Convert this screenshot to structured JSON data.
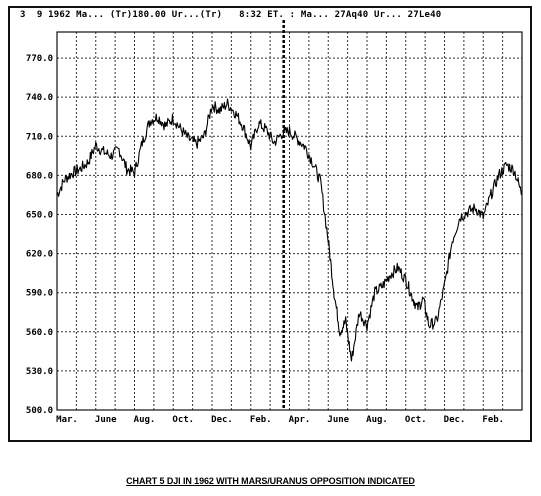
{
  "header": {
    "text": "3  9 1962 Ma... (Tr)180.00 Ur...(Tr)   8:32 ET. : Ma... 27Aq40 Ur... 27Le40"
  },
  "caption": "CHART 5  DJI IN 1962 WITH MARS/URANUS OPPOSITION INDICATED",
  "chart_data": {
    "type": "line",
    "title": "",
    "xlabel": "",
    "ylabel": "",
    "ylim": [
      500,
      790
    ],
    "y_ticks": [
      500,
      530,
      560,
      590,
      620,
      650,
      680,
      710,
      740,
      770
    ],
    "y_tick_labels": [
      "500.0",
      "530.0",
      "560.0",
      "590.0",
      "620.0",
      "650.0",
      "680.0",
      "710.0",
      "740.0",
      "770.0"
    ],
    "x_range": [
      0,
      24
    ],
    "x_ticks": [
      0,
      2,
      4,
      6,
      8,
      10,
      12,
      14,
      16,
      18,
      20,
      22
    ],
    "x_tick_labels": [
      "Mar.",
      "June",
      "Aug.",
      "Oct.",
      "Dec.",
      "Feb.",
      "Apr.",
      "June",
      "Aug.",
      "Oct.",
      "Dec.",
      "Feb."
    ],
    "grid": true,
    "opposition_marker_x": 11.7,
    "series": [
      {
        "name": "",
        "x": [
          0.0,
          0.4,
          0.8,
          1.2,
          1.6,
          2.0,
          2.4,
          2.8,
          3.2,
          3.6,
          4.0,
          4.4,
          4.8,
          5.2,
          5.6,
          6.0,
          6.4,
          6.8,
          7.2,
          7.6,
          8.0,
          8.4,
          8.8,
          9.2,
          9.6,
          10.0,
          10.4,
          10.8,
          11.2,
          11.6,
          12.0,
          12.4,
          12.8,
          13.2,
          13.6,
          14.0,
          14.3,
          14.6,
          14.9,
          15.2,
          15.6,
          16.0,
          16.4,
          16.8,
          17.2,
          17.6,
          18.0,
          18.3,
          18.6,
          18.9,
          19.2,
          19.6,
          20.0,
          20.4,
          20.8,
          21.2,
          21.6,
          22.0,
          22.4,
          22.8,
          23.2,
          23.6,
          24.0
        ],
        "values": [
          665,
          677,
          682,
          685,
          690,
          703,
          698,
          695,
          700,
          685,
          682,
          705,
          722,
          725,
          718,
          724,
          715,
          708,
          704,
          710,
          734,
          730,
          735,
          728,
          718,
          702,
          720,
          715,
          705,
          712,
          714,
          708,
          702,
          690,
          675,
          630,
          590,
          560,
          568,
          538,
          575,
          565,
          590,
          595,
          604,
          609,
          600,
          588,
          578,
          585,
          565,
          568,
          595,
          630,
          648,
          652,
          655,
          648,
          665,
          680,
          688,
          684,
          665
        ]
      }
    ]
  }
}
